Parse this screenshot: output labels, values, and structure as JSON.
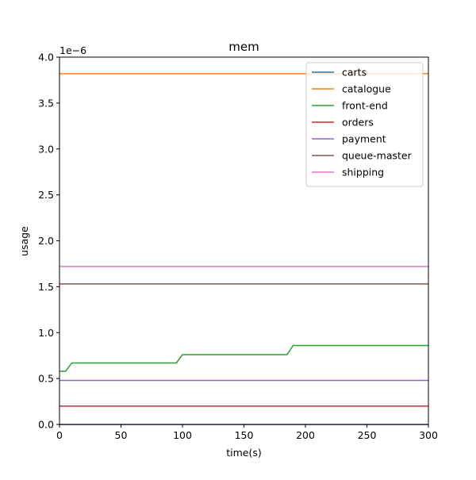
{
  "chart_data": {
    "type": "line",
    "title": "mem",
    "xlabel": "time(s)",
    "ylabel": "usage",
    "y_offset_text": "1e−6",
    "xlim": [
      0,
      300
    ],
    "ylim": [
      0,
      4.0
    ],
    "y_scale_note": "values in units of 1e-6",
    "xticks": [
      0,
      50,
      100,
      150,
      200,
      250,
      300
    ],
    "xtick_labels": [
      "0",
      "50",
      "100",
      "150",
      "200",
      "250",
      "300"
    ],
    "yticks": [
      0,
      0.5,
      1.0,
      1.5,
      2.0,
      2.5,
      3.0,
      3.5,
      4.0
    ],
    "ytick_labels": [
      "0.0",
      "0.5",
      "1.0",
      "1.5",
      "2.0",
      "2.5",
      "3.0",
      "3.5",
      "4.0"
    ],
    "grid": false,
    "legend_position": "top-right",
    "series": [
      {
        "name": "carts",
        "color": "#1f77b4",
        "points": [
          [
            0,
            0.0
          ],
          [
            300,
            0.0
          ]
        ]
      },
      {
        "name": "catalogue",
        "color": "#ff7f0e",
        "points": [
          [
            0,
            3.82
          ],
          [
            300,
            3.82
          ]
        ]
      },
      {
        "name": "front-end",
        "color": "#2ca02c",
        "points": [
          [
            0,
            0.58
          ],
          [
            5,
            0.58
          ],
          [
            10,
            0.67
          ],
          [
            95,
            0.67
          ],
          [
            100,
            0.76
          ],
          [
            185,
            0.76
          ],
          [
            190,
            0.86
          ],
          [
            300,
            0.86
          ]
        ]
      },
      {
        "name": "orders",
        "color": "#d62728",
        "points": [
          [
            0,
            0.2
          ],
          [
            300,
            0.2
          ]
        ]
      },
      {
        "name": "payment",
        "color": "#9467bd",
        "points": [
          [
            0,
            0.48
          ],
          [
            300,
            0.48
          ]
        ]
      },
      {
        "name": "queue-master",
        "color": "#8c564b",
        "points": [
          [
            0,
            1.53
          ],
          [
            300,
            1.53
          ]
        ]
      },
      {
        "name": "shipping",
        "color": "#e377c2",
        "points": [
          [
            0,
            1.72
          ],
          [
            300,
            1.72
          ]
        ]
      }
    ]
  }
}
